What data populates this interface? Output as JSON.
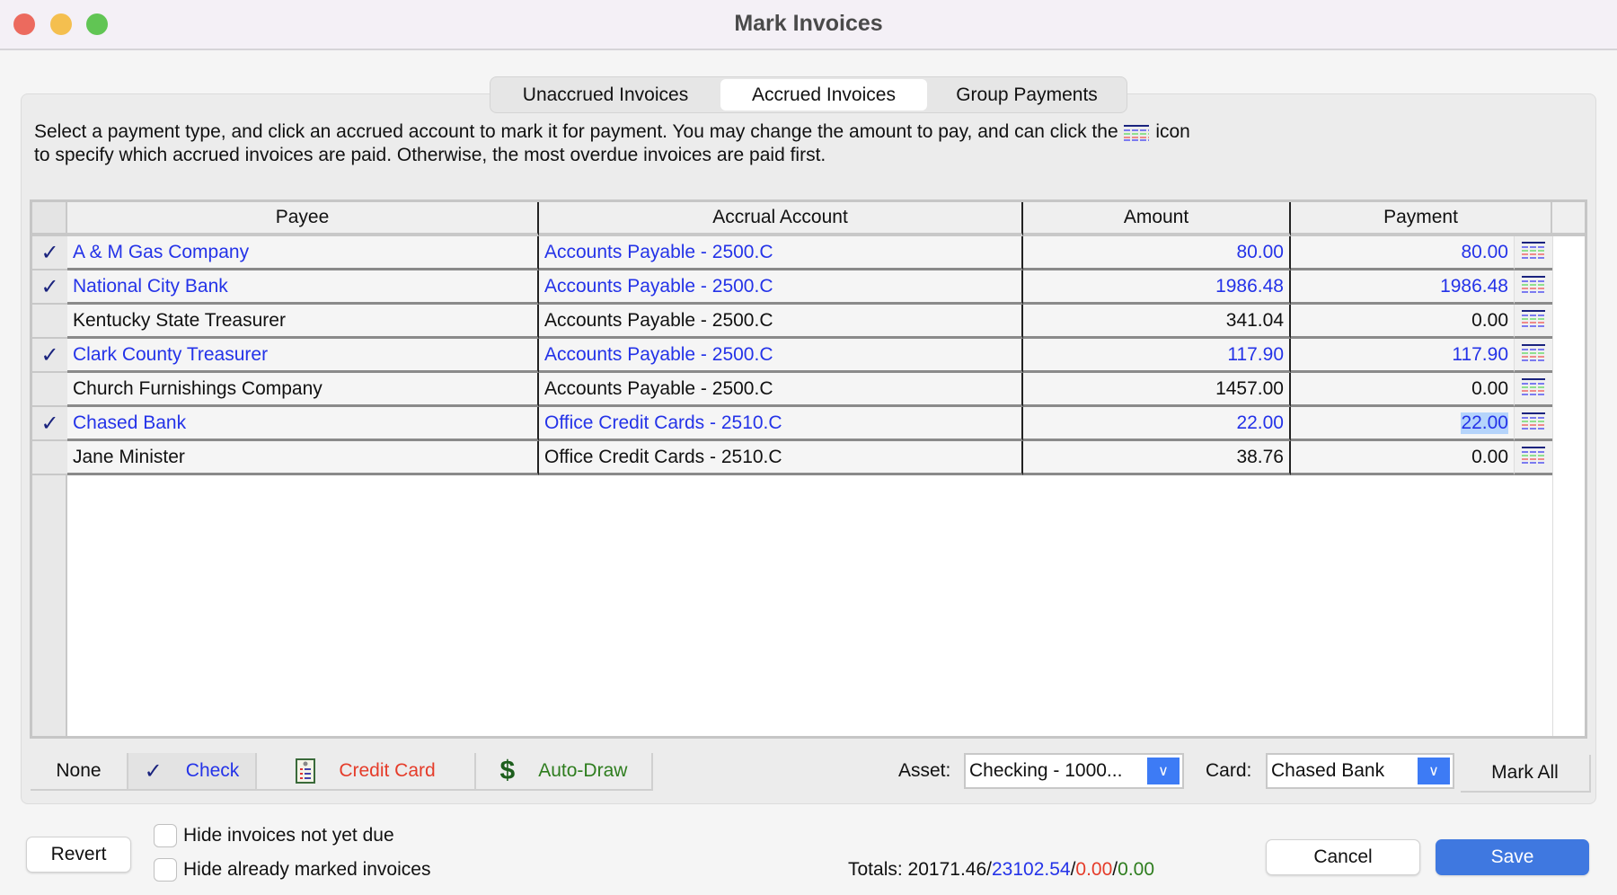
{
  "window": {
    "title": "Mark Invoices"
  },
  "tabs": [
    {
      "label": "Unaccrued Invoices",
      "selected": false
    },
    {
      "label": "Accrued Invoices",
      "selected": true
    },
    {
      "label": "Group Payments",
      "selected": false
    }
  ],
  "instructions": {
    "line1_before": "Select a payment type, and click an accrued account to mark it for payment. You may change the amount to pay, and can click the",
    "line1_after": "icon",
    "line2": "to specify which accrued invoices are paid. Otherwise, the most overdue invoices are paid first."
  },
  "table": {
    "columns": [
      "Payee",
      "Accrual Account",
      "Amount",
      "Payment"
    ],
    "rows": [
      {
        "marked": true,
        "payee": "A & M Gas Company",
        "account": "Accounts Payable - 2500.C",
        "amount": "80.00",
        "payment": "80.00"
      },
      {
        "marked": true,
        "payee": "National City Bank",
        "account": "Accounts Payable - 2500.C",
        "amount": "1986.48",
        "payment": "1986.48"
      },
      {
        "marked": false,
        "payee": "Kentucky State Treasurer",
        "account": "Accounts Payable - 2500.C",
        "amount": "341.04",
        "payment": "0.00"
      },
      {
        "marked": true,
        "payee": "Clark County Treasurer",
        "account": "Accounts Payable - 2500.C",
        "amount": "117.90",
        "payment": "117.90"
      },
      {
        "marked": false,
        "payee": "Church Furnishings Company",
        "account": "Accounts Payable - 2500.C",
        "amount": "1457.00",
        "payment": "0.00"
      },
      {
        "marked": true,
        "payee": "Chased Bank",
        "account": "Office Credit Cards - 2510.C",
        "amount": "22.00",
        "payment": "22.00",
        "editing": true
      },
      {
        "marked": false,
        "payee": "Jane Minister",
        "account": "Office Credit Cards - 2510.C",
        "amount": "38.76",
        "payment": "0.00"
      }
    ]
  },
  "payment_types": {
    "none": "None",
    "check": "Check",
    "credit_card": "Credit Card",
    "auto_draw": "Auto-Draw",
    "selected": "Check"
  },
  "asset": {
    "label": "Asset:",
    "value": "Checking - 1000..."
  },
  "card": {
    "label": "Card:",
    "value": "Chased Bank"
  },
  "mark_all": "Mark All",
  "revert": "Revert",
  "options": {
    "hide_not_due": {
      "label": "Hide invoices not yet due",
      "checked": false
    },
    "hide_marked": {
      "label": "Hide already marked invoices",
      "checked": false
    }
  },
  "totals": {
    "label": "Totals:",
    "total": "20171.46",
    "check": "23102.54",
    "credit_card": "0.00",
    "auto_draw": "0.00"
  },
  "cancel": "Cancel",
  "save": "Save",
  "colors": {
    "marked": "#2433e8",
    "credit_card": "#e53c2a",
    "auto_draw": "#2e7d1e",
    "accent": "#3d7bf5"
  }
}
